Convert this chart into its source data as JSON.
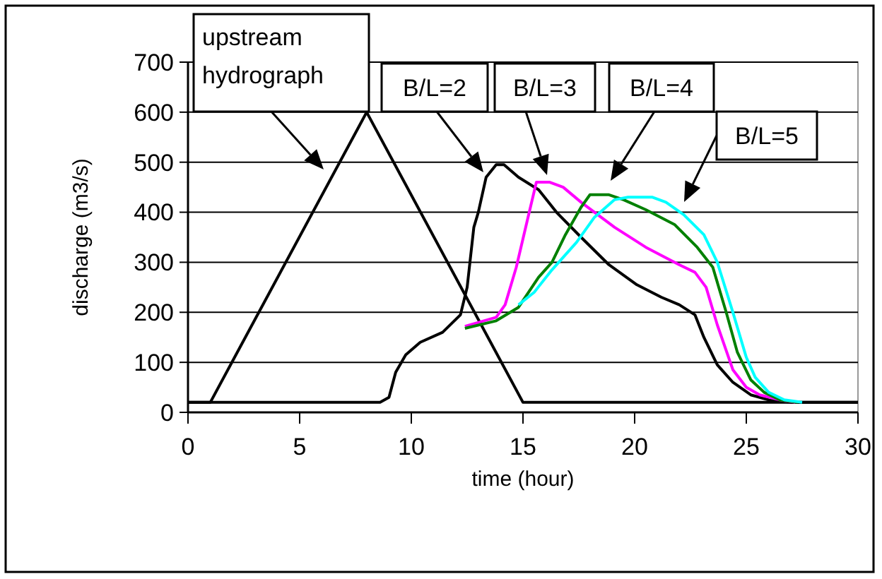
{
  "chart_data": {
    "type": "line",
    "xlabel": "time (hour)",
    "ylabel": "discharge (m3/s)",
    "xlim": [
      0,
      30
    ],
    "ylim": [
      0,
      700
    ],
    "xticks": [
      0,
      5,
      10,
      15,
      20,
      25,
      30
    ],
    "yticks": [
      0,
      100,
      200,
      300,
      400,
      500,
      600,
      700
    ],
    "grid": "y",
    "marker": "none",
    "line_style": "solid",
    "series": [
      {
        "color": "#000000",
        "x": [
          0,
          1,
          8,
          15,
          30
        ],
        "values": [
          20,
          20,
          600,
          20,
          20
        ]
      },
      {
        "color": "#000000",
        "x": [
          0,
          8.6,
          9.0,
          9.3,
          9.75,
          10.4,
          11.4,
          12.2,
          12.5,
          12.8,
          13.0,
          13.35,
          13.8,
          14.15,
          14.8,
          15.7,
          16.5,
          17.6,
          18.85,
          20.1,
          21.2,
          22.0,
          22.7,
          23.1,
          23.7,
          24.4,
          25.2,
          26.0,
          27,
          30
        ],
        "values": [
          20,
          20,
          30,
          80,
          115,
          140,
          160,
          195,
          250,
          370,
          400,
          470,
          495,
          495,
          470,
          445,
          400,
          350,
          295,
          255,
          230,
          215,
          195,
          150,
          95,
          60,
          35,
          25,
          20,
          20
        ]
      },
      {
        "color": "#ff00ff",
        "x": [
          12.4,
          13.8,
          14.2,
          14.7,
          15.2,
          15.6,
          16.2,
          16.8,
          17.6,
          19.1,
          20.5,
          22.0,
          22.7,
          23.2,
          23.7,
          24.4,
          25.0,
          25.6,
          26.5,
          27.2
        ],
        "values": [
          172,
          190,
          215,
          290,
          385,
          460,
          460,
          450,
          420,
          370,
          330,
          295,
          280,
          250,
          175,
          85,
          50,
          35,
          25,
          20
        ]
      },
      {
        "color": "#008000",
        "x": [
          12.4,
          13.8,
          14.8,
          15.7,
          16.3,
          16.9,
          17.6,
          18.0,
          18.85,
          19.5,
          20.5,
          21.8,
          22.8,
          23.5,
          24.1,
          24.6,
          25.2,
          25.8,
          26.5,
          27.3
        ],
        "values": [
          168,
          183,
          210,
          270,
          300,
          355,
          410,
          435,
          435,
          425,
          405,
          375,
          330,
          290,
          200,
          120,
          65,
          40,
          25,
          20
        ]
      },
      {
        "color": "#00ffff",
        "x": [
          14.8,
          15.5,
          16.3,
          17.4,
          18.2,
          19.1,
          19.7,
          20.8,
          21.4,
          22.2,
          23.1,
          23.7,
          24.4,
          25.0,
          25.4,
          26.0,
          26.7,
          27.5
        ],
        "values": [
          215,
          240,
          285,
          340,
          390,
          425,
          430,
          430,
          420,
          395,
          355,
          300,
          200,
          110,
          70,
          40,
          25,
          20
        ]
      }
    ],
    "annotations": [
      "upstream hydrograph",
      "B/L=2",
      "B/L=3",
      "B/L=4",
      "B/L=5"
    ]
  }
}
